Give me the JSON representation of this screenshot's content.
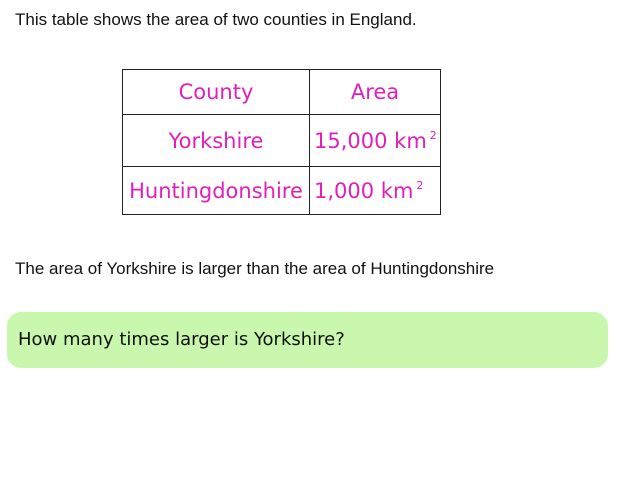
{
  "intro_text": "This table shows the area of two counties in England.",
  "table": {
    "headers": {
      "county": "County",
      "area": "Area"
    },
    "rows": [
      {
        "county": "Yorkshire",
        "area": "15,000 km",
        "unit_power": "2"
      },
      {
        "county": "Huntingdonshire",
        "area": "1,000 km",
        "unit_power": "2"
      }
    ]
  },
  "statement_text": "The area of Yorkshire is larger than the area of Huntingdonshire",
  "question_text": "How many times larger is Yorkshire?",
  "colors": {
    "table_text": "#e020b8",
    "question_background": "#c8f7ad"
  }
}
